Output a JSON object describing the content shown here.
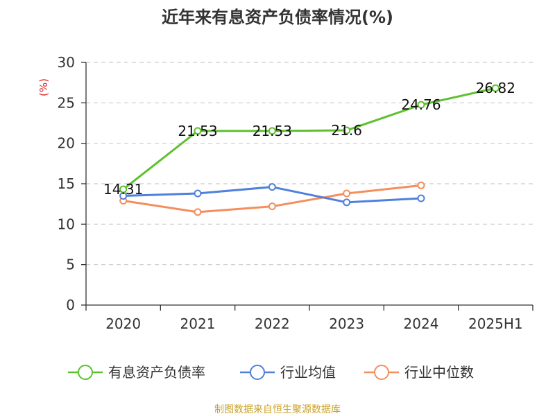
{
  "chart_data": {
    "type": "line",
    "title": "近年来有息资产负债率情况(%)",
    "ylabel": "(%)",
    "ylim": [
      0,
      30
    ],
    "yticks": [
      0,
      5,
      10,
      15,
      20,
      25,
      30
    ],
    "categories": [
      "2020",
      "2021",
      "2022",
      "2023",
      "2024",
      "2025H1"
    ],
    "grid": true,
    "legend_position": "bottom",
    "series": [
      {
        "name": "有息资产负债率",
        "color": "#5cc12d",
        "values": [
          14.31,
          21.53,
          21.53,
          21.6,
          24.76,
          26.82
        ],
        "labels": [
          "14.31",
          "21.53",
          "21.53",
          "21.6",
          "24.76",
          "26.82"
        ]
      },
      {
        "name": "行业均值",
        "color": "#4e80dc",
        "values": [
          13.5,
          13.8,
          14.6,
          12.7,
          13.2,
          null
        ]
      },
      {
        "name": "行业中位数",
        "color": "#f58d5c",
        "values": [
          12.9,
          11.5,
          12.2,
          13.8,
          14.8,
          null
        ]
      }
    ],
    "source": "制图数据来自恒生聚源数据库"
  }
}
